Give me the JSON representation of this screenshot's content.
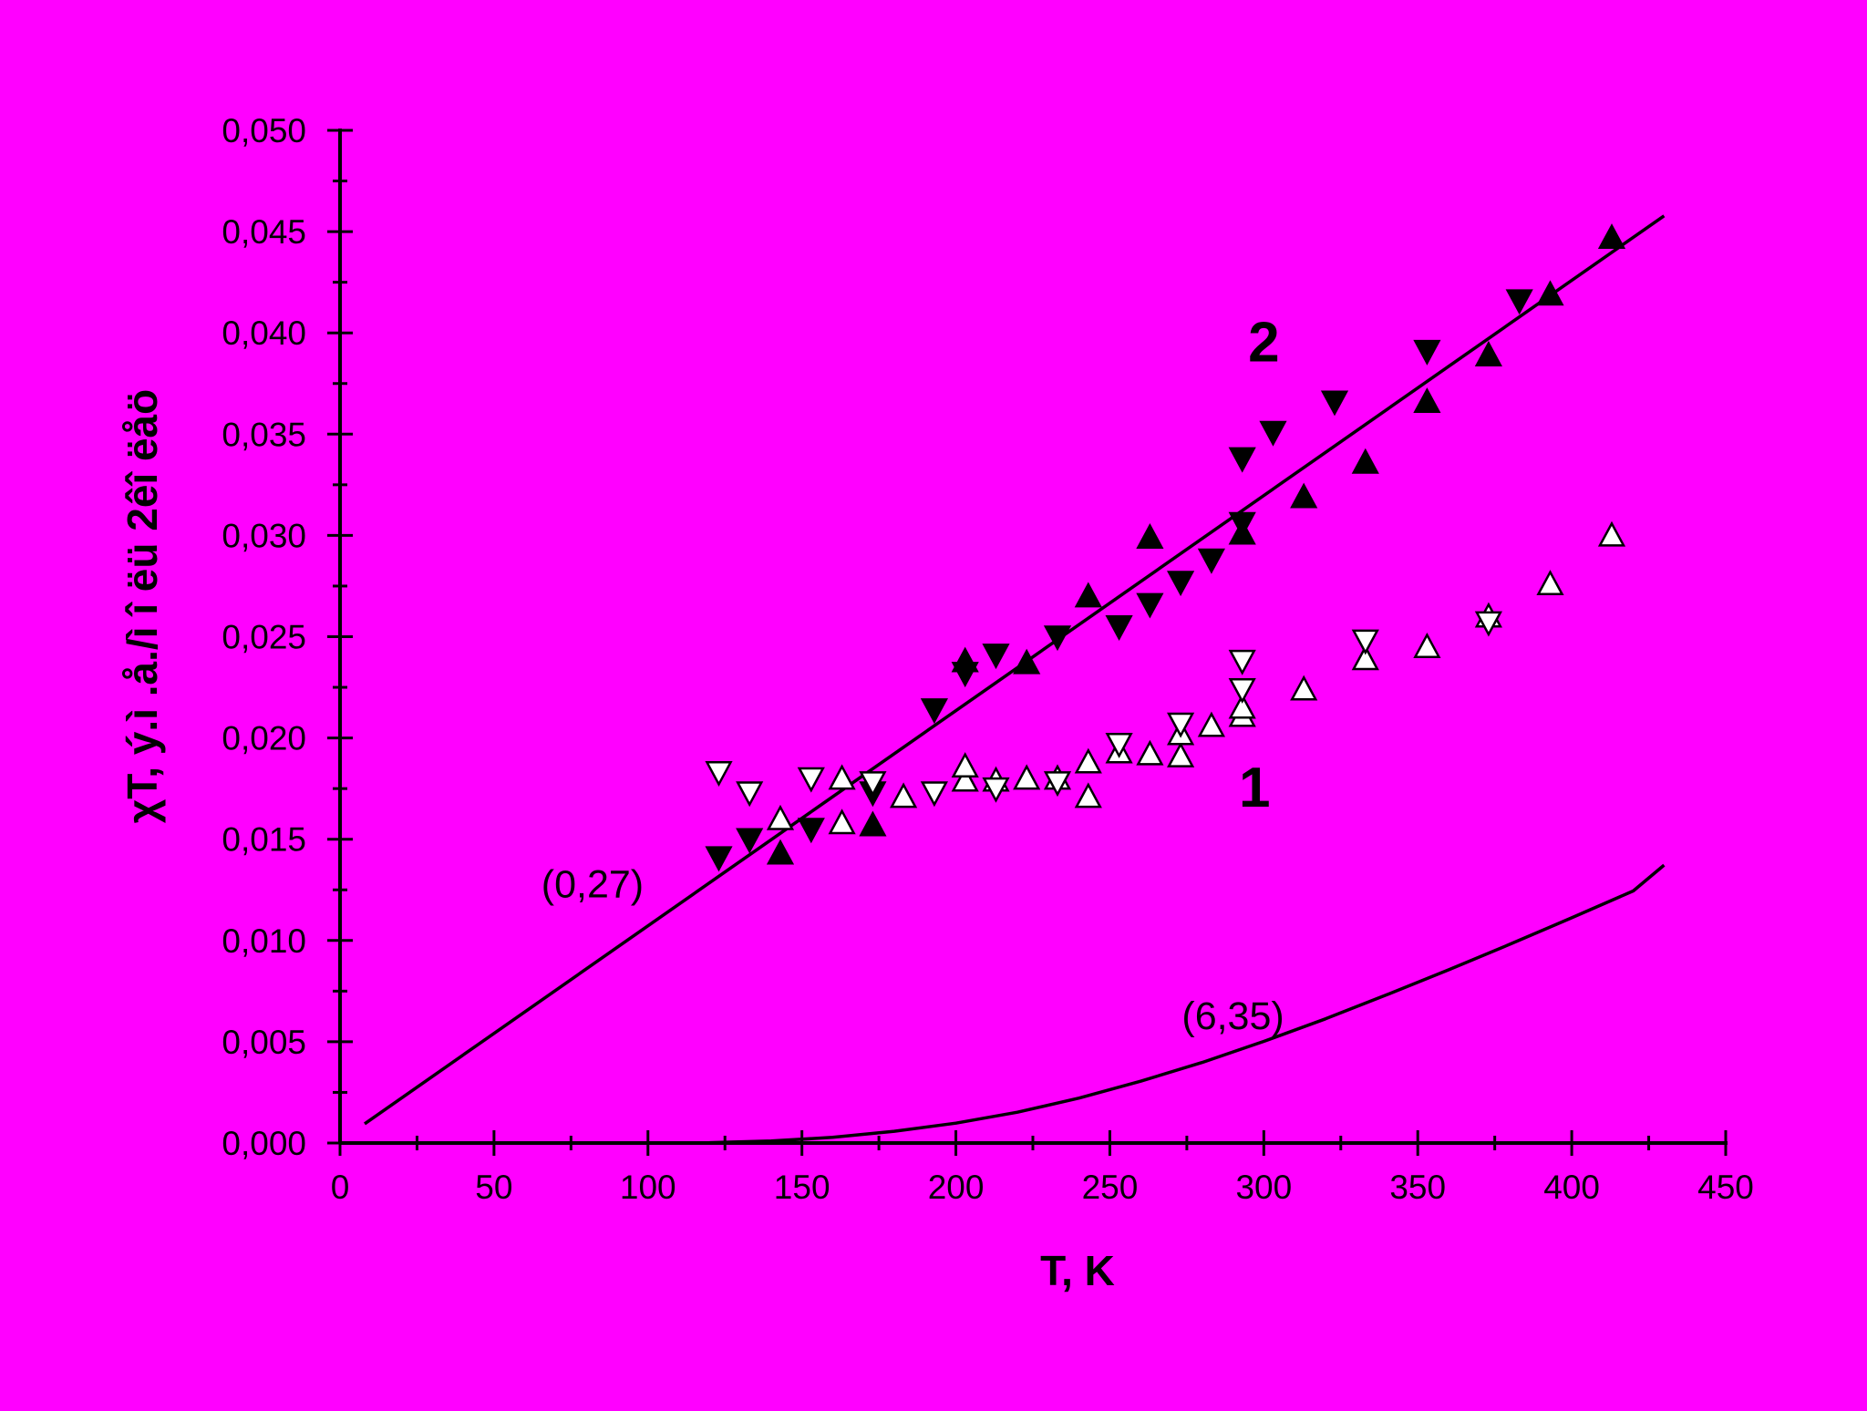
{
  "colors": {
    "background": "#ff00ff",
    "ink": "#000000",
    "open_marker_fill": "#ffffff"
  },
  "chart_data": {
    "type": "scatter",
    "title": "",
    "xlabel": "T, K",
    "ylabel": "χT, ý.ì .å./ì î ëü 2êî ëåö",
    "xlim": [
      0,
      450
    ],
    "ylim": [
      0,
      0.05
    ],
    "x_ticks": [
      0,
      50,
      100,
      150,
      200,
      250,
      300,
      350,
      400,
      450
    ],
    "x_tick_labels": [
      "0",
      "50",
      "100",
      "150",
      "200",
      "250",
      "300",
      "350",
      "400",
      "450"
    ],
    "y_ticks": [
      0,
      0.005,
      0.01,
      0.015,
      0.02,
      0.025,
      0.03,
      0.035,
      0.04,
      0.045,
      0.05
    ],
    "y_tick_labels": [
      "0,000",
      "0,005",
      "0,010",
      "0,015",
      "0,020",
      "0,025",
      "0,030",
      "0,035",
      "0,040",
      "0,045",
      "0,050"
    ],
    "grid": false,
    "curve_labels": [
      {
        "text": "2",
        "x": 300,
        "y": 0.0395
      },
      {
        "text": "1",
        "x": 297,
        "y": 0.0175
      }
    ],
    "annotations": [
      {
        "text": "(0,27)",
        "x": 82,
        "y": 0.0128
      },
      {
        "text": "(6,35)",
        "x": 290,
        "y": 0.0063
      }
    ],
    "series": [
      {
        "marker": "triangle-up",
        "filled": true,
        "points": [
          [
            143,
            0.0143
          ],
          [
            173,
            0.0157
          ],
          [
            203,
            0.0238
          ],
          [
            223,
            0.0237
          ],
          [
            243,
            0.027
          ],
          [
            263,
            0.0299
          ],
          [
            293,
            0.0301
          ],
          [
            313,
            0.0319
          ],
          [
            333,
            0.0336
          ],
          [
            353,
            0.0366
          ],
          [
            373,
            0.0389
          ],
          [
            393,
            0.0419
          ],
          [
            413,
            0.0447
          ]
        ]
      },
      {
        "marker": "triangle-down",
        "filled": true,
        "points": [
          [
            123,
            0.0141
          ],
          [
            133,
            0.015
          ],
          [
            153,
            0.0155
          ],
          [
            173,
            0.0173
          ],
          [
            193,
            0.0214
          ],
          [
            203,
            0.0232
          ],
          [
            213,
            0.0241
          ],
          [
            233,
            0.025
          ],
          [
            253,
            0.0255
          ],
          [
            263,
            0.0266
          ],
          [
            273,
            0.0277
          ],
          [
            283,
            0.0288
          ],
          [
            293,
            0.0306
          ],
          [
            293,
            0.0338
          ],
          [
            303,
            0.0351
          ],
          [
            323,
            0.0366
          ],
          [
            353,
            0.0391
          ],
          [
            383,
            0.0416
          ]
        ]
      },
      {
        "marker": "triangle-up",
        "filled": false,
        "points": [
          [
            143,
            0.016
          ],
          [
            163,
            0.0158
          ],
          [
            163,
            0.018
          ],
          [
            183,
            0.0171
          ],
          [
            203,
            0.0179
          ],
          [
            203,
            0.0186
          ],
          [
            213,
            0.0179
          ],
          [
            223,
            0.018
          ],
          [
            233,
            0.018
          ],
          [
            243,
            0.0171
          ],
          [
            243,
            0.0188
          ],
          [
            253,
            0.0193
          ],
          [
            263,
            0.0192
          ],
          [
            273,
            0.0191
          ],
          [
            273,
            0.0202
          ],
          [
            283,
            0.0206
          ],
          [
            293,
            0.0211
          ],
          [
            293,
            0.0215
          ],
          [
            313,
            0.0224
          ],
          [
            333,
            0.0239
          ],
          [
            353,
            0.0245
          ],
          [
            373,
            0.026
          ],
          [
            393,
            0.0276
          ],
          [
            413,
            0.03
          ]
        ]
      },
      {
        "marker": "triangle-down",
        "filled": false,
        "points": [
          [
            123,
            0.0183
          ],
          [
            133,
            0.0173
          ],
          [
            153,
            0.018
          ],
          [
            173,
            0.0178
          ],
          [
            193,
            0.0173
          ],
          [
            213,
            0.0175
          ],
          [
            233,
            0.0178
          ],
          [
            253,
            0.0197
          ],
          [
            273,
            0.0207
          ],
          [
            293,
            0.0224
          ],
          [
            293,
            0.0238
          ],
          [
            333,
            0.0248
          ],
          [
            373,
            0.0257
          ]
        ]
      }
    ],
    "fit_lines": [
      {
        "label": "(0,27)",
        "x": [
          8,
          430
        ],
        "y": [
          0.00095,
          0.04578
        ]
      },
      {
        "label": "(6,35)",
        "x": [
          120,
          140,
          160,
          180,
          200,
          220,
          240,
          260,
          280,
          300,
          320,
          340,
          360,
          380,
          400,
          420,
          430
        ],
        "y": [
          2e-05,
          0.0001,
          0.00028,
          0.00058,
          0.00098,
          0.00152,
          0.00222,
          0.00305,
          0.00398,
          0.00502,
          0.00613,
          0.00732,
          0.00855,
          0.00982,
          0.01112,
          0.01245,
          0.01372
        ]
      }
    ]
  }
}
